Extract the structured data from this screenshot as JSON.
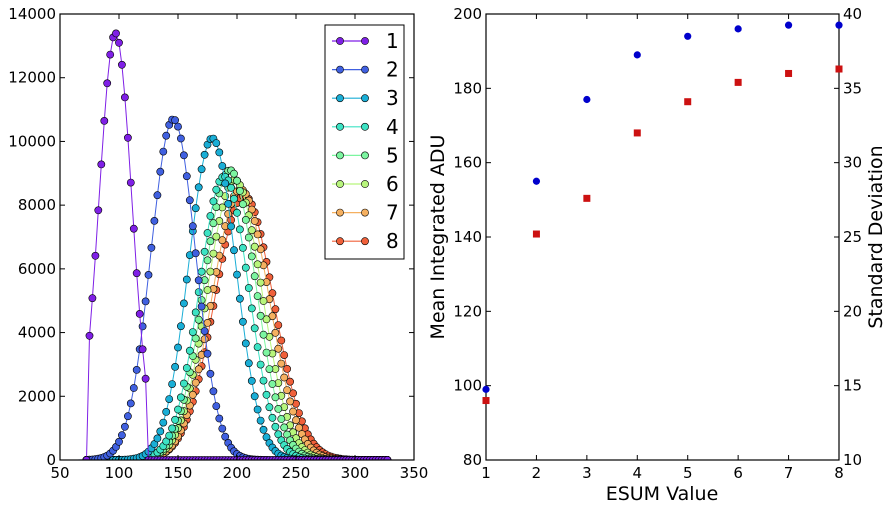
{
  "chart_data": [
    {
      "type": "line",
      "xlim": [
        50,
        350
      ],
      "ylim": [
        0,
        14000
      ],
      "xticks": [
        "50",
        "100",
        "150",
        "200",
        "250",
        "300",
        "350"
      ],
      "yticks": [
        "0",
        "2000",
        "4000",
        "6000",
        "8000",
        "10000",
        "12000",
        "14000"
      ],
      "legend_position": "top-right",
      "marker": "circle",
      "series": [
        {
          "name": "1",
          "color": "#7f1fe6",
          "mu": 97,
          "sigma": 14,
          "amp": 13400,
          "xmin": 73,
          "xmax": 125,
          "cut_low": 73,
          "cut_high": 123
        },
        {
          "name": "2",
          "color": "#4060e0",
          "mu": 146,
          "sigma": 19,
          "amp": 10700
        },
        {
          "name": "3",
          "color": "#1aaed6",
          "mu": 179,
          "sigma": 20,
          "amp": 10100
        },
        {
          "name": "4",
          "color": "#3de3c4",
          "mu": 189,
          "sigma": 21,
          "amp": 8900
        },
        {
          "name": "5",
          "color": "#7cf5a0",
          "mu": 194,
          "sigma": 22,
          "amp": 9100
        },
        {
          "name": "6",
          "color": "#b8f57c",
          "mu": 198,
          "sigma": 23,
          "amp": 8800
        },
        {
          "name": "7",
          "color": "#f5b060",
          "mu": 203,
          "sigma": 24,
          "amp": 8500
        },
        {
          "name": "8",
          "color": "#f0603a",
          "mu": 206,
          "sigma": 25,
          "amp": 8300
        }
      ]
    },
    {
      "type": "scatter",
      "xlabel": "ESUM Value",
      "ylabel": "Mean Integrated ADU",
      "y2label": "Standard Deviation",
      "xlim": [
        1,
        8
      ],
      "ylim": [
        80,
        200
      ],
      "y2lim": [
        10,
        40
      ],
      "xticks": [
        "1",
        "2",
        "3",
        "4",
        "5",
        "6",
        "7",
        "8"
      ],
      "yticks": [
        "80",
        "100",
        "120",
        "140",
        "160",
        "180",
        "200"
      ],
      "y2ticks": [
        "10",
        "15",
        "20",
        "25",
        "30",
        "35",
        "40"
      ],
      "series": [
        {
          "axis": "left",
          "marker": "circle",
          "color": "#0000cc",
          "x": [
            1,
            2,
            3,
            4,
            5,
            6,
            7,
            8
          ],
          "y": [
            99,
            155,
            177,
            189,
            194,
            196,
            197,
            197
          ]
        },
        {
          "axis": "right",
          "marker": "square",
          "color": "#cc1111",
          "x": [
            1,
            2,
            3,
            4,
            5,
            6,
            7,
            8
          ],
          "y": [
            14,
            25.2,
            27.6,
            32,
            34.1,
            35.4,
            36,
            36.3
          ]
        }
      ]
    }
  ]
}
